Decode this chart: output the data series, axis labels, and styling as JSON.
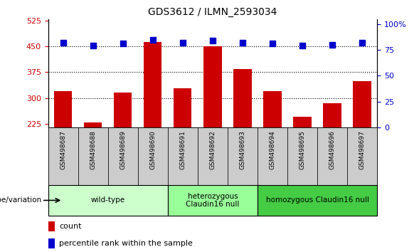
{
  "title": "GDS3612 / ILMN_2593034",
  "samples": [
    "GSM498687",
    "GSM498688",
    "GSM498689",
    "GSM498690",
    "GSM498691",
    "GSM498692",
    "GSM498693",
    "GSM498694",
    "GSM498695",
    "GSM498696",
    "GSM498697"
  ],
  "counts": [
    320,
    230,
    315,
    463,
    328,
    450,
    385,
    320,
    245,
    285,
    348
  ],
  "percentile_ranks": [
    82,
    79,
    81,
    85,
    82,
    84,
    82,
    81,
    79,
    80,
    82
  ],
  "ylim_left": [
    215,
    530
  ],
  "yticks_left": [
    225,
    300,
    375,
    450,
    525
  ],
  "ylim_right": [
    0,
    105
  ],
  "yticks_right": [
    0,
    25,
    50,
    75,
    100
  ],
  "bar_color": "#CC0000",
  "dot_color": "#0000CC",
  "grid_values": [
    300,
    375,
    450
  ],
  "groups": [
    {
      "label": "wild-type",
      "start": 0,
      "end": 3,
      "color": "#ccffcc"
    },
    {
      "label": "heterozygous\nClaudin16 null",
      "start": 4,
      "end": 6,
      "color": "#99ff99"
    },
    {
      "label": "homozygous Claudin16 null",
      "start": 7,
      "end": 10,
      "color": "#44cc44"
    }
  ],
  "sample_box_color": "#cccccc",
  "genotype_label": "genotype/variation",
  "legend_count_label": "count",
  "legend_pct_label": "percentile rank within the sample",
  "background_color": "#ffffff",
  "label_color_left": "#CC0000",
  "label_color_right": "#0000CC"
}
